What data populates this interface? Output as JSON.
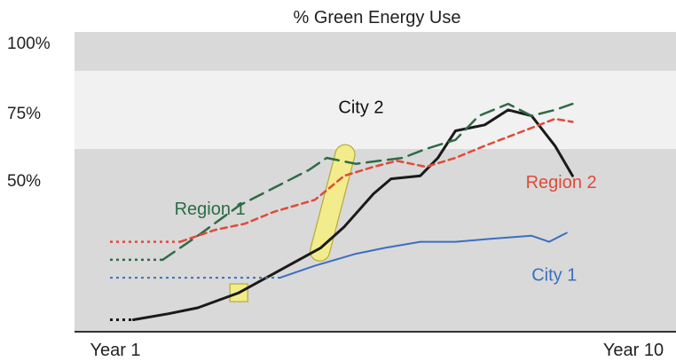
{
  "chart_data": {
    "type": "line",
    "title": "% Green Energy Use",
    "xlabel": "",
    "ylabel": "",
    "x_tick_labels": [
      "Year 1",
      "Year 10"
    ],
    "y_tick_labels": [
      "100%",
      "75%",
      "50%"
    ],
    "x_range": [
      1,
      10
    ],
    "y_range": [
      0,
      100
    ],
    "grid": false,
    "bands": [
      {
        "from": 0,
        "to": 61,
        "color": "#d9d9d9"
      },
      {
        "from": 61,
        "to": 87,
        "color": "#f1f1f1"
      },
      {
        "from": 87,
        "to": 100,
        "color": "#d9d9d9"
      }
    ],
    "series": [
      {
        "name": "City 2",
        "color": "#1a1a1a",
        "style": "solid",
        "width": 3,
        "baseline": {
          "x": [
            1.0,
            1.4
          ],
          "y": [
            4,
            4
          ]
        },
        "x": [
          1.4,
          2.0,
          2.5,
          3.2,
          4.6,
          5.0,
          5.5,
          5.8,
          6.3,
          6.6,
          6.9,
          7.4,
          7.8,
          8.2,
          8.6,
          8.9
        ],
        "y": [
          4,
          6,
          8,
          13,
          28,
          35,
          46,
          51,
          52,
          58,
          67,
          69,
          74,
          72,
          62,
          52
        ]
      },
      {
        "name": "Region 1",
        "color": "#2e6b45",
        "style": "longdash",
        "width": 2.5,
        "baseline": {
          "x": [
            1.0,
            1.9
          ],
          "y": [
            24,
            24
          ]
        },
        "x": [
          1.9,
          2.5,
          3.2,
          3.8,
          4.4,
          4.7,
          5.2,
          5.6,
          6.0,
          6.4,
          6.9,
          7.3,
          7.8,
          8.2,
          8.6,
          8.9
        ],
        "y": [
          24,
          32,
          42,
          48,
          54,
          58,
          56,
          57,
          58,
          61,
          64,
          72,
          76,
          72,
          74,
          76
        ]
      },
      {
        "name": "Region 2",
        "color": "#e04a3a",
        "style": "shortdash",
        "width": 2.5,
        "baseline": {
          "x": [
            1.0,
            2.2
          ],
          "y": [
            30,
            30
          ]
        },
        "x": [
          2.2,
          2.8,
          3.3,
          3.8,
          4.5,
          5.0,
          5.5,
          5.9,
          6.4,
          6.9,
          7.4,
          7.8,
          8.2,
          8.6,
          8.9
        ],
        "y": [
          30,
          34,
          36,
          40,
          44,
          52,
          55,
          57,
          55,
          58,
          62,
          65,
          68,
          71,
          70
        ]
      },
      {
        "name": "City 1",
        "color": "#3a6fbf",
        "style": "solid",
        "width": 2,
        "baseline": {
          "x": [
            1.0,
            3.9
          ],
          "y": [
            18,
            18
          ]
        },
        "x": [
          3.9,
          4.5,
          5.2,
          5.7,
          6.3,
          6.9,
          7.5,
          8.2,
          8.5,
          8.8
        ],
        "y": [
          18,
          22,
          26,
          28,
          30,
          30,
          31,
          32,
          30,
          33
        ]
      }
    ],
    "annotations": {
      "city2_label": "City 2",
      "region1_label": "Region 1",
      "region2_label": "Region 2",
      "city1_label": "City 1",
      "highlights": [
        {
          "shape": "square",
          "x": 3.2,
          "y": 13
        },
        {
          "shape": "capsule",
          "x_from": 4.6,
          "y_from": 28,
          "x_to": 5.0,
          "y_to": 58
        }
      ],
      "highlight_color": "#f2ec8c"
    }
  }
}
